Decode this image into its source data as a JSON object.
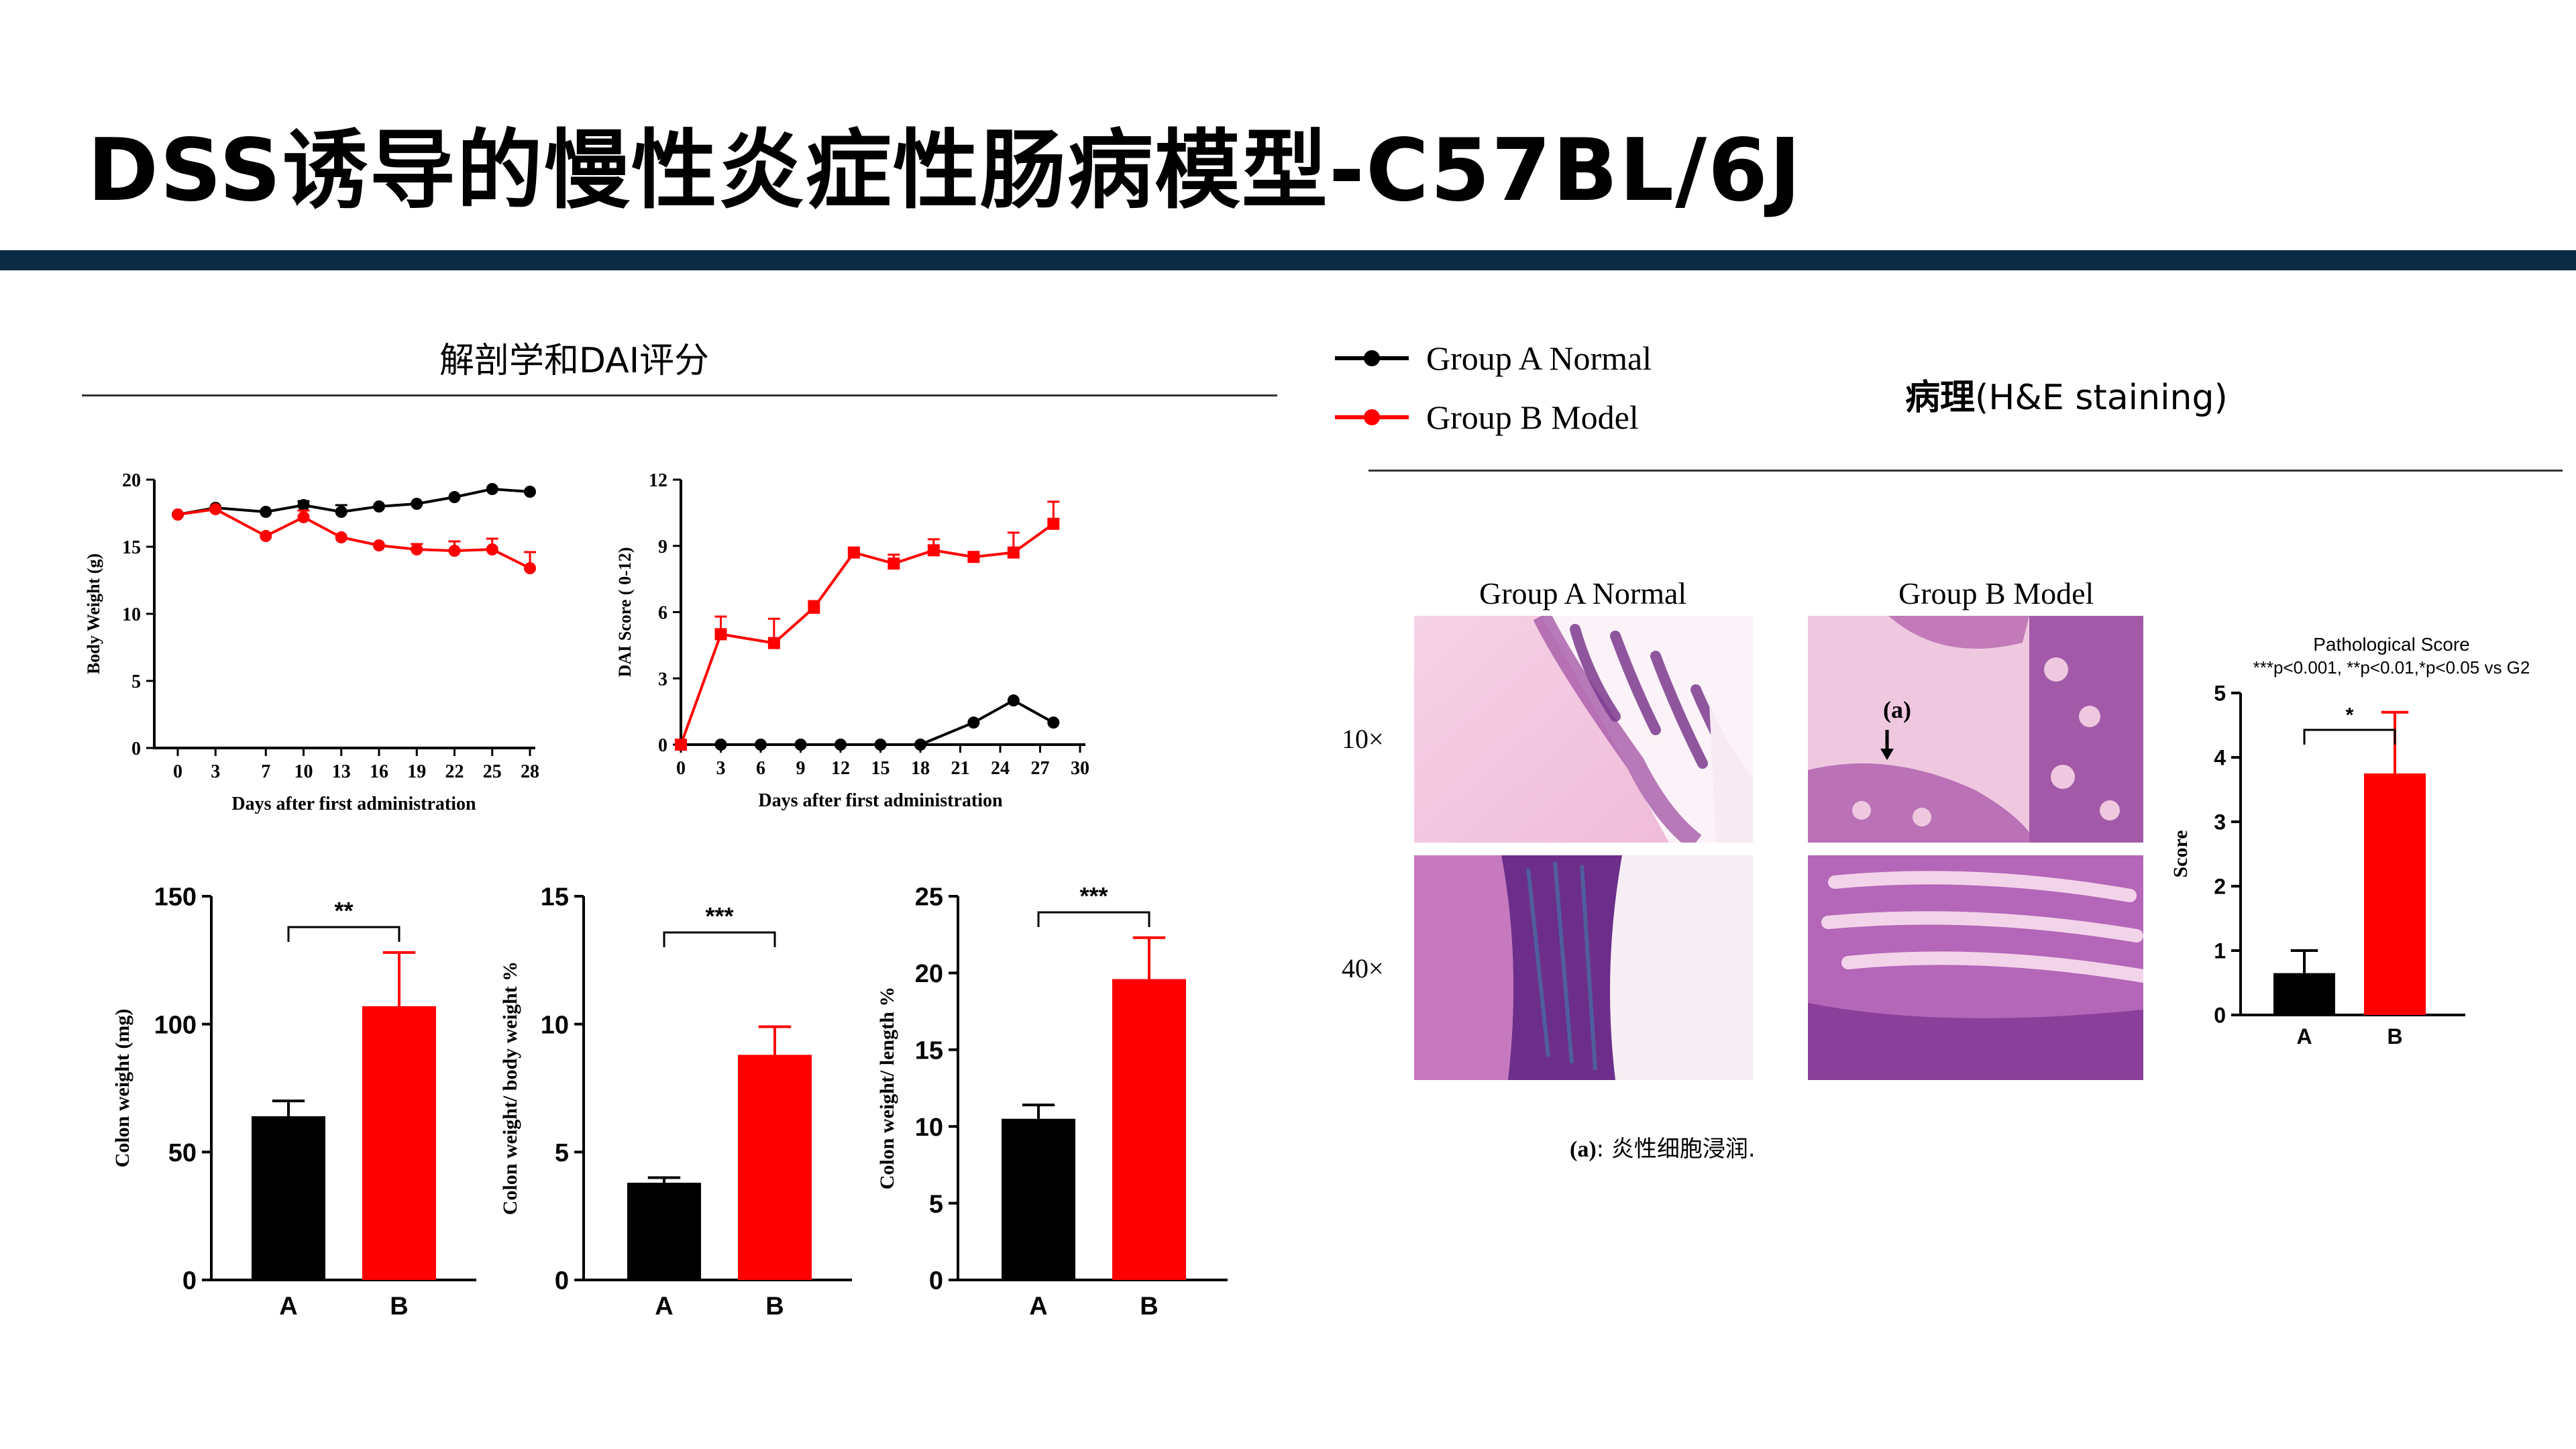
{
  "title": "DSS诱导的慢性炎症性肠病模型-C57BL/6J",
  "colors": {
    "bar": "#0b2b45",
    "groupA": "#000000",
    "groupB": "#ff0000"
  },
  "left_section": {
    "title": "解剖学和DAI评分"
  },
  "right_section": {
    "title_bold": "病理",
    "title_rest": "(H&E staining)"
  },
  "legend": [
    {
      "label": "Group A Normal",
      "color": "#000000"
    },
    {
      "label": "Group B Model",
      "color": "#ff0000"
    }
  ],
  "histology": {
    "columns": [
      "Group A Normal",
      "Group B Model"
    ],
    "rows": [
      "10×",
      "40×"
    ],
    "annotation": "(a)",
    "caption_bold": "(a)",
    "caption_rest": ": 炎性细胞浸润."
  },
  "chart_data": [
    {
      "id": "body-weight",
      "type": "line",
      "xlabel": "Days after first administration",
      "ylabel": "Body Weight (g)",
      "x": [
        0,
        3,
        7,
        10,
        13,
        16,
        19,
        22,
        25,
        28
      ],
      "xticks": [
        0,
        3,
        7,
        10,
        13,
        16,
        19,
        22,
        25,
        28
      ],
      "ylim": [
        0,
        20
      ],
      "yticks": [
        0,
        5,
        10,
        15,
        20
      ],
      "series": [
        {
          "name": "Group A Normal",
          "color": "#000000",
          "marker": "circle",
          "values": [
            17.4,
            17.9,
            17.6,
            18.1,
            17.6,
            18.0,
            18.2,
            18.7,
            19.3,
            19.1
          ],
          "errors": [
            0,
            0,
            0,
            0.3,
            0.5,
            0,
            0,
            0,
            0,
            0
          ]
        },
        {
          "name": "Group B Model",
          "color": "#ff0000",
          "marker": "circle",
          "values": [
            17.4,
            17.8,
            15.8,
            17.2,
            15.7,
            15.1,
            14.8,
            14.7,
            14.8,
            13.4
          ],
          "errors": [
            0,
            0,
            0,
            0.5,
            0,
            0,
            0.4,
            0.7,
            0.8,
            1.2
          ]
        }
      ]
    },
    {
      "id": "dai-score",
      "type": "line",
      "xlabel": "Days after first administration",
      "ylabel": "DAI Score ( 0-12)",
      "xlim": [
        0,
        30
      ],
      "xticks": [
        0,
        3,
        6,
        9,
        12,
        15,
        18,
        21,
        24,
        27,
        30
      ],
      "ylim": [
        0,
        12
      ],
      "yticks": [
        0,
        3,
        6,
        9,
        12
      ],
      "series": [
        {
          "name": "Group A Normal",
          "color": "#000000",
          "marker": "circle",
          "x": [
            0,
            3,
            6,
            9,
            12,
            15,
            18,
            22,
            25,
            28
          ],
          "values": [
            0,
            0,
            0,
            0,
            0,
            0,
            0,
            1,
            2,
            1
          ],
          "errors": [
            0,
            0,
            0,
            0,
            0,
            0,
            0,
            0,
            0,
            0
          ]
        },
        {
          "name": "Group B Model",
          "color": "#ff0000",
          "marker": "square",
          "x": [
            0,
            3,
            7,
            10,
            13,
            16,
            19,
            22,
            25,
            28
          ],
          "values": [
            0,
            5.0,
            4.6,
            6.2,
            8.7,
            8.2,
            8.8,
            8.5,
            8.7,
            10.0
          ],
          "errors": [
            0,
            0.8,
            1.1,
            0.3,
            0.2,
            0.4,
            0.5,
            0,
            0.9,
            1.0
          ]
        }
      ]
    },
    {
      "id": "colon-weight",
      "type": "bar",
      "ylabel": "Colon weight (mg)",
      "categories": [
        "A",
        "B"
      ],
      "values": [
        64,
        107
      ],
      "errors": [
        6,
        21
      ],
      "colors": [
        "#000000",
        "#ff0000"
      ],
      "ylim": [
        0,
        150
      ],
      "yticks": [
        0,
        50,
        100,
        150
      ],
      "significance": "**"
    },
    {
      "id": "colon-body-ratio",
      "type": "bar",
      "ylabel": "Colon weight/ body weight %",
      "categories": [
        "A",
        "B"
      ],
      "values": [
        3.8,
        8.8
      ],
      "errors": [
        0.2,
        1.1
      ],
      "colors": [
        "#000000",
        "#ff0000"
      ],
      "ylim": [
        0,
        15
      ],
      "yticks": [
        0,
        5,
        10,
        15
      ],
      "significance": "***"
    },
    {
      "id": "colon-length-ratio",
      "type": "bar",
      "ylabel": "Colon weight/ length %",
      "categories": [
        "A",
        "B"
      ],
      "values": [
        10.5,
        19.6
      ],
      "errors": [
        0.9,
        2.7
      ],
      "colors": [
        "#000000",
        "#ff0000"
      ],
      "ylim": [
        0,
        25
      ],
      "yticks": [
        0,
        5,
        10,
        15,
        20,
        25
      ],
      "significance": "***"
    },
    {
      "id": "pathological-score",
      "type": "bar",
      "title": "Pathological Score",
      "subtitle": "***p<0.001, **p<0.01,*p<0.05 vs G2",
      "ylabel": "Score",
      "categories": [
        "A",
        "B"
      ],
      "values": [
        0.65,
        3.75
      ],
      "errors": [
        0.35,
        0.95
      ],
      "colors": [
        "#000000",
        "#ff0000"
      ],
      "ylim": [
        0,
        5
      ],
      "yticks": [
        0,
        1,
        2,
        3,
        4,
        5
      ],
      "significance": "*"
    }
  ]
}
